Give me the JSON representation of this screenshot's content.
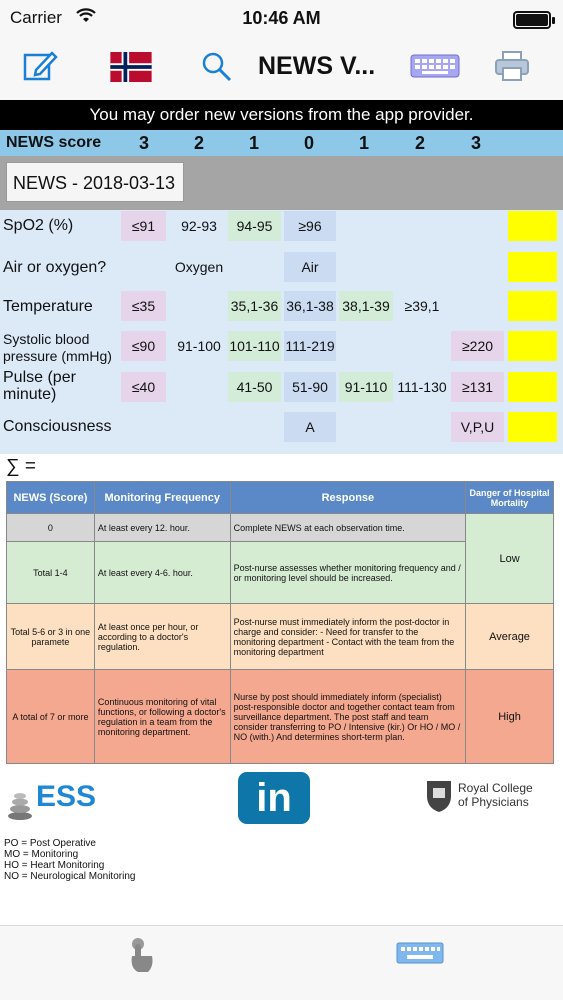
{
  "status": {
    "carrier": "Carrier",
    "time": "10:46 AM"
  },
  "toolbar": {
    "title": "NEWS V..."
  },
  "banner": "You may order new versions from the app provider.",
  "score_header": {
    "label": "NEWS score",
    "values": [
      "3",
      "2",
      "1",
      "0",
      "1",
      "2",
      "3"
    ]
  },
  "date_label": "NEWS - 2018-03-13",
  "rows": [
    {
      "label": "SpO2 (%)",
      "cells": [
        "≤91",
        "92-93",
        "94-95",
        "≥96",
        "",
        "",
        ""
      ]
    },
    {
      "label": "Air or oxygen?",
      "cells": [
        "",
        "Oxygen",
        "",
        "Air",
        "",
        "",
        ""
      ]
    },
    {
      "label": "Temperature",
      "cells": [
        "≤35",
        "",
        "35,1-36",
        "36,1-38",
        "38,1-39",
        "≥39,1",
        ""
      ]
    },
    {
      "label": "Systolic blood pressure (mmHg)",
      "cells": [
        "≤90",
        "91-100",
        "101-110",
        "111-219",
        "",
        "",
        "≥220"
      ]
    },
    {
      "label": "Pulse (per minute)",
      "cells": [
        "≤40",
        "",
        "41-50",
        "51-90",
        "91-110",
        "111-130",
        "≥131"
      ]
    },
    {
      "label": "Consciousness",
      "cells": [
        "",
        "",
        "",
        "A",
        "",
        "",
        "V,P,U"
      ]
    }
  ],
  "sum_label": "∑ =",
  "table": {
    "headers": [
      "NEWS (Score)",
      "Monitoring Frequency",
      "Response",
      "Danger of Hospital Mortality"
    ],
    "rows": [
      {
        "score": "0",
        "freq": "At least every 12. hour.",
        "response": "Complete NEWS at each observation time.",
        "level": ""
      },
      {
        "score": "Total 1-4",
        "freq": "At least every 4-6. hour.",
        "response": "Post-nurse assesses whether monitoring frequency and / or monitoring level should be increased.",
        "level": "Low"
      },
      {
        "score": "Total 5-6 or 3 in one paramete",
        "freq": "At least once per hour, or according to a doctor's regulation.",
        "response": "Post-nurse must immediately inform the post-doctor in charge and consider: - Need for transfer to the monitoring department - Contact with the team from the monitoring department",
        "level": "Average"
      },
      {
        "score": "A total of 7 or more",
        "freq": "Continuous monitoring of vital functions, or following a doctor's regulation in a team from the monitoring department.",
        "response": "Nurse by post should immediately inform (specialist) post-responsible doctor and together contact team from surveillance department. The post staff and team consider transferring to PO / Intensive (kir.) Or HO / MO / NO (with.) And determines short-term plan.",
        "level": "High"
      }
    ]
  },
  "logos": {
    "ess": "ESS",
    "linkedin": "in",
    "rcp_line1": "Royal College",
    "rcp_line2": "of Physicians"
  },
  "legend": [
    "PO = Post Operative",
    "MO = Monitoring",
    "HO = Heart Monitoring",
    "NO = Neurological Monitoring"
  ]
}
